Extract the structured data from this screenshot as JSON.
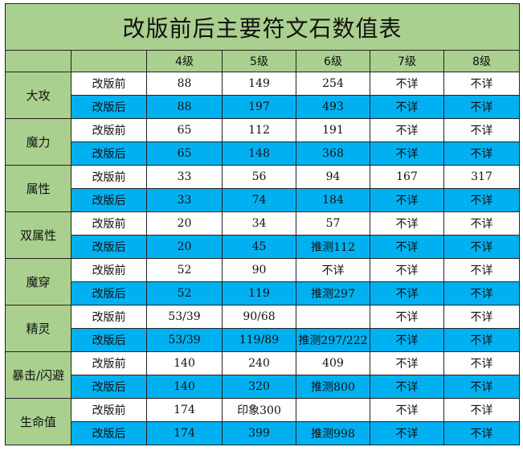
{
  "title": "改版前后主要符文石数值表",
  "columns": [
    "",
    "",
    "4级",
    "5级",
    "6级",
    "7级",
    "8级"
  ],
  "rows": [
    {
      "category": "大攻",
      "before": {
        "label": "改版前",
        "values": [
          "88",
          "149",
          "254",
          "不详",
          "不详"
        ]
      },
      "after": {
        "label": "改版后",
        "values": [
          "88",
          "197",
          "493",
          "不详",
          "不详"
        ]
      }
    },
    {
      "category": "魔力",
      "before": {
        "label": "改版前",
        "values": [
          "65",
          "112",
          "191",
          "不详",
          "不详"
        ]
      },
      "after": {
        "label": "改版后",
        "values": [
          "65",
          "148",
          "368",
          "不详",
          "不详"
        ]
      }
    },
    {
      "category": "属性",
      "before": {
        "label": "改版前",
        "values": [
          "33",
          "56",
          "94",
          "167",
          "317"
        ]
      },
      "after": {
        "label": "改版后",
        "values": [
          "33",
          "74",
          "184",
          "不详",
          "不详"
        ]
      }
    },
    {
      "category": "双属性",
      "before": {
        "label": "改版前",
        "values": [
          "20",
          "34",
          "57",
          "不详",
          "不详"
        ]
      },
      "after": {
        "label": "改版后",
        "values": [
          "20",
          "45",
          "推测112",
          "不详",
          "不详"
        ]
      }
    },
    {
      "category": "魔穿",
      "before": {
        "label": "改版前",
        "values": [
          "52",
          "90",
          "不详",
          "不详",
          "不详"
        ]
      },
      "after": {
        "label": "改版后",
        "values": [
          "52",
          "119",
          "推测297",
          "不详",
          "不详"
        ]
      }
    },
    {
      "category": "精灵",
      "before": {
        "label": "改版前",
        "values": [
          "53/39",
          "90/68",
          "",
          "不详",
          "不详"
        ]
      },
      "after": {
        "label": "改版后",
        "values": [
          "53/39",
          "119/89",
          "推测297/222",
          "不详",
          "不详"
        ]
      }
    },
    {
      "category": "暴击/闪避",
      "before": {
        "label": "改版前",
        "values": [
          "140",
          "240",
          "409",
          "不详",
          "不详"
        ]
      },
      "after": {
        "label": "改版后",
        "values": [
          "140",
          "320",
          "推测800",
          "不详",
          "不详"
        ]
      }
    },
    {
      "category": "生命值",
      "before": {
        "label": "改版前",
        "values": [
          "174",
          "印象300",
          "",
          "不详",
          "不详"
        ]
      },
      "after": {
        "label": "改版后",
        "values": [
          "174",
          "399",
          "推测998",
          "不详",
          "不详"
        ]
      }
    }
  ],
  "colors": {
    "header_green": "#a9d08e",
    "after_blue": "#00b0f0",
    "before_white": "#ffffff"
  }
}
